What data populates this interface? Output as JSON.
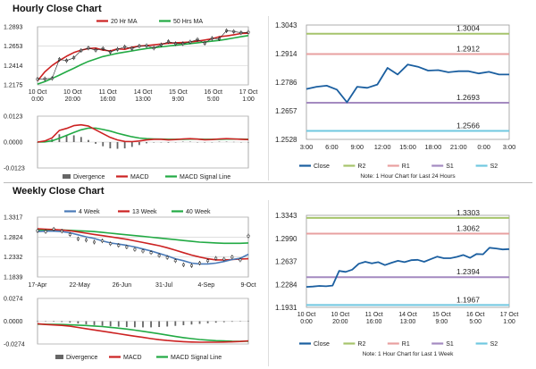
{
  "sections": {
    "hourly_title": "Hourly Close Chart",
    "weekly_title": "Weekly Close Chart"
  },
  "chart_data": [
    {
      "id": "hourly-price",
      "type": "line",
      "legend": [
        "20 Hr MA",
        "50 Hrs MA"
      ],
      "colors": {
        "price": "#222222",
        "ma20": "#cc2222",
        "ma50": "#22aa44"
      },
      "y_ticks": [
        "1.2893",
        "1.2653",
        "1.2414",
        "1.2175"
      ],
      "ylim": [
        1.2175,
        1.2893
      ],
      "x_ticks": [
        [
          "10 Oct",
          "0:00"
        ],
        [
          "10 Oct",
          "20:00"
        ],
        [
          "11 Oct",
          "16:00"
        ],
        [
          "14 Oct",
          "13:00"
        ],
        [
          "15 Oct",
          "9:00"
        ],
        [
          "16 Oct",
          "5:00"
        ],
        [
          "17 Oct",
          "1:00"
        ]
      ],
      "price": [
        1.2245,
        1.225,
        1.2255,
        1.249,
        1.2475,
        1.251,
        1.26,
        1.263,
        1.2605,
        1.2625,
        1.258,
        1.2615,
        1.2645,
        1.2625,
        1.2655,
        1.266,
        1.263,
        1.267,
        1.271,
        1.2685,
        1.2685,
        1.2705,
        1.2735,
        1.269,
        1.275,
        1.2745,
        1.2845,
        1.2835,
        1.282,
        1.2825
      ],
      "ma20": [
        1.2225,
        1.2335,
        1.2415,
        1.2475,
        1.253,
        1.2575,
        1.2605,
        1.2625,
        1.263,
        1.2605,
        1.2595,
        1.262,
        1.2615,
        1.264,
        1.2655,
        1.266,
        1.267,
        1.268,
        1.269,
        1.2695,
        1.27,
        1.2705,
        1.2715,
        1.273,
        1.2745,
        1.277,
        1.278,
        1.2795,
        1.281,
        1.2815
      ],
      "ma50": [
        1.2185,
        1.2215,
        1.2255,
        1.2295,
        1.234,
        1.238,
        1.2425,
        1.2465,
        1.2495,
        1.2525,
        1.2545,
        1.2565,
        1.258,
        1.2595,
        1.261,
        1.2625,
        1.2635,
        1.2645,
        1.2655,
        1.2665,
        1.2675,
        1.2685,
        1.2695,
        1.2705,
        1.2715,
        1.2725,
        1.274,
        1.2755,
        1.277,
        1.2785
      ]
    },
    {
      "id": "hourly-macd",
      "type": "line",
      "legend": [
        "Divergence",
        "MACD",
        "MACD Signal Line"
      ],
      "colors": {
        "divergence": "#666666",
        "macd": "#cc2222",
        "signal": "#22aa44"
      },
      "y_ticks": [
        "0.0123",
        "0.0000",
        "-0.0123"
      ],
      "ylim": [
        -0.0123,
        0.0123
      ],
      "macd": [
        0.0,
        0.0005,
        0.002,
        0.0055,
        0.0065,
        0.0078,
        0.0082,
        0.0076,
        0.0058,
        0.004,
        0.0022,
        0.001,
        0.0003,
        0.0002,
        0.0005,
        0.001,
        0.0013,
        0.0013,
        0.001,
        0.0012,
        0.0015,
        0.0016,
        0.0014,
        0.0011,
        0.0012,
        0.0015,
        0.0016,
        0.0015,
        0.0013,
        0.0012
      ],
      "signal": [
        0.0,
        0.0001,
        0.0006,
        0.0018,
        0.0032,
        0.0046,
        0.0058,
        0.0066,
        0.0066,
        0.006,
        0.0052,
        0.0042,
        0.0033,
        0.0025,
        0.0019,
        0.0016,
        0.0015,
        0.0014,
        0.0013,
        0.0013,
        0.0013,
        0.0014,
        0.0014,
        0.0013,
        0.0013,
        0.0013,
        0.0014,
        0.0014,
        0.0014,
        0.0013
      ],
      "divergence": [
        0.0,
        0.0004,
        0.0014,
        0.0037,
        0.0033,
        0.0032,
        0.0024,
        0.001,
        -0.0008,
        -0.002,
        -0.003,
        -0.0032,
        -0.003,
        -0.0023,
        -0.0014,
        -0.0006,
        -0.0002,
        -0.0001,
        -0.0003,
        -0.0001,
        0.0002,
        0.0002,
        0.0,
        -0.0002,
        -0.0001,
        0.0002,
        0.0002,
        0.0001,
        -0.0001,
        -0.0001
      ]
    },
    {
      "id": "hourly-pivot",
      "type": "line",
      "y_ticks": [
        "1.3043",
        "1.2914",
        "1.2786",
        "1.2657",
        "1.2528"
      ],
      "ylim": [
        1.2528,
        1.3043
      ],
      "x_ticks": [
        "3:00",
        "6:00",
        "9:00",
        "12:00",
        "15:00",
        "18:00",
        "21:00",
        "0:00",
        "3:00"
      ],
      "levels": [
        {
          "name": "R2",
          "value": 1.3004,
          "label": "1.3004",
          "color": "#a6c46c"
        },
        {
          "name": "R1",
          "value": 1.2912,
          "label": "1.2912",
          "color": "#e8a0a0"
        },
        {
          "name": "S1",
          "value": 1.2693,
          "label": "1.2693",
          "color": "#a48ac0"
        },
        {
          "name": "S2",
          "value": 1.2566,
          "label": "1.2566",
          "color": "#70c8e0"
        }
      ],
      "close": [
        1.2755,
        1.2765,
        1.277,
        1.2752,
        1.2695,
        1.2765,
        1.276,
        1.2775,
        1.285,
        1.282,
        1.2865,
        1.2855,
        1.2838,
        1.284,
        1.283,
        1.2835,
        1.2835,
        1.2825,
        1.2832,
        1.282,
        1.282
      ],
      "close_color": "#1b5fa0",
      "legend": [
        "Close",
        "R2",
        "R1",
        "S1",
        "S2"
      ],
      "note": "Note: 1 Hour Chart for Last 24 Hours"
    },
    {
      "id": "weekly-price",
      "type": "line",
      "legend": [
        "4 Week",
        "13 Week",
        "40 Week"
      ],
      "colors": {
        "price": "#222222",
        "w4": "#4a7ab8",
        "w13": "#cc2222",
        "w40": "#22aa44"
      },
      "y_ticks": [
        "1.3317",
        "1.2824",
        "1.2332",
        "1.1839"
      ],
      "ylim": [
        1.1839,
        1.3317
      ],
      "x_ticks": [
        "17-Apr",
        "22-May",
        "26-Jun",
        "31-Jul",
        "4-Sep",
        "9-Oct"
      ],
      "price": [
        1.298,
        1.296,
        1.302,
        1.297,
        1.289,
        1.278,
        1.275,
        1.27,
        1.273,
        1.266,
        1.262,
        1.258,
        1.252,
        1.248,
        1.244,
        1.237,
        1.232,
        1.224,
        1.214,
        1.212,
        1.218,
        1.224,
        1.23,
        1.228,
        1.233,
        1.226,
        1.285
      ],
      "w4": [
        1.296,
        1.297,
        1.297,
        1.296,
        1.293,
        1.288,
        1.283,
        1.279,
        1.273,
        1.268,
        1.265,
        1.262,
        1.258,
        1.253,
        1.248,
        1.242,
        1.236,
        1.229,
        1.224,
        1.218,
        1.216,
        1.216,
        1.218,
        1.222,
        1.227,
        1.23,
        1.24
      ],
      "w13": [
        1.303,
        1.302,
        1.301,
        1.3,
        1.298,
        1.295,
        1.292,
        1.289,
        1.286,
        1.283,
        1.28,
        1.277,
        1.273,
        1.269,
        1.265,
        1.261,
        1.256,
        1.25,
        1.244,
        1.238,
        1.233,
        1.229,
        1.226,
        1.226,
        1.227,
        1.228,
        1.229
      ],
      "w40": [
        1.3,
        1.3,
        1.3,
        1.3,
        1.299,
        1.298,
        1.297,
        1.296,
        1.294,
        1.292,
        1.29,
        1.288,
        1.286,
        1.284,
        1.282,
        1.28,
        1.278,
        1.276,
        1.274,
        1.272,
        1.27,
        1.269,
        1.268,
        1.267,
        1.267,
        1.267,
        1.268
      ]
    },
    {
      "id": "weekly-macd",
      "type": "line",
      "legend": [
        "Divergence",
        "MACD",
        "MACD Signal Line"
      ],
      "colors": {
        "divergence": "#666666",
        "macd": "#cc2222",
        "signal": "#22aa44"
      },
      "y_ticks": [
        "0.0274",
        "0.0000",
        "-0.0274"
      ],
      "ylim": [
        -0.0274,
        0.0274
      ],
      "macd": [
        -0.003,
        -0.004,
        -0.0045,
        -0.005,
        -0.006,
        -0.0075,
        -0.009,
        -0.0105,
        -0.012,
        -0.0135,
        -0.015,
        -0.0165,
        -0.018,
        -0.0195,
        -0.021,
        -0.0222,
        -0.0232,
        -0.024,
        -0.0246,
        -0.025,
        -0.0252,
        -0.0253,
        -0.0252,
        -0.025,
        -0.0248,
        -0.0244,
        -0.0236
      ],
      "signal": [
        -0.0035,
        -0.0036,
        -0.0038,
        -0.004,
        -0.0043,
        -0.0047,
        -0.0052,
        -0.0058,
        -0.0065,
        -0.0074,
        -0.0084,
        -0.0095,
        -0.0107,
        -0.0121,
        -0.0136,
        -0.0152,
        -0.0168,
        -0.0184,
        -0.0198,
        -0.021,
        -0.022,
        -0.0228,
        -0.0234,
        -0.0238,
        -0.0241,
        -0.0242,
        -0.0242
      ],
      "divergence": [
        0.0005,
        -0.0004,
        -0.0007,
        -0.001,
        -0.0017,
        -0.0028,
        -0.0038,
        -0.0047,
        -0.0055,
        -0.0061,
        -0.0066,
        -0.007,
        -0.0073,
        -0.0074,
        -0.0074,
        -0.007,
        -0.0064,
        -0.0056,
        -0.0048,
        -0.004,
        -0.0032,
        -0.0025,
        -0.0018,
        -0.0012,
        -0.0007,
        -0.0002,
        0.0006
      ]
    },
    {
      "id": "weekly-pivot",
      "type": "line",
      "y_ticks": [
        "1.3343",
        "1.2990",
        "1.2637",
        "1.2284",
        "1.1931"
      ],
      "ylim": [
        1.1931,
        1.3343
      ],
      "x_ticks": [
        [
          "10 Oct",
          "0:00"
        ],
        [
          "10 Oct",
          "20:00"
        ],
        [
          "11 Oct",
          "16:00"
        ],
        [
          "14 Oct",
          "13:00"
        ],
        [
          "15 Oct",
          "9:00"
        ],
        [
          "16 Oct",
          "5:00"
        ],
        [
          "17 Oct",
          "1:00"
        ]
      ],
      "levels": [
        {
          "name": "R2",
          "value": 1.3303,
          "label": "1.3303",
          "color": "#a6c46c"
        },
        {
          "name": "R1",
          "value": 1.3062,
          "label": "1.3062",
          "color": "#e8a0a0"
        },
        {
          "name": "S1",
          "value": 1.2394,
          "label": "1.2394",
          "color": "#a48ac0"
        },
        {
          "name": "S2",
          "value": 1.1967,
          "label": "1.1967",
          "color": "#70c8e0"
        }
      ],
      "close": [
        1.2245,
        1.225,
        1.226,
        1.2255,
        1.2265,
        1.249,
        1.2475,
        1.251,
        1.26,
        1.263,
        1.2605,
        1.2625,
        1.258,
        1.2615,
        1.2645,
        1.2625,
        1.2655,
        1.266,
        1.263,
        1.267,
        1.271,
        1.2685,
        1.2685,
        1.2705,
        1.2735,
        1.269,
        1.275,
        1.2745,
        1.2845,
        1.2835,
        1.282,
        1.2825
      ],
      "close_color": "#1b5fa0",
      "legend": [
        "Close",
        "R2",
        "R1",
        "S1",
        "S2"
      ],
      "note": "Note: 1 Hour Chart for Last 1 Week"
    }
  ]
}
